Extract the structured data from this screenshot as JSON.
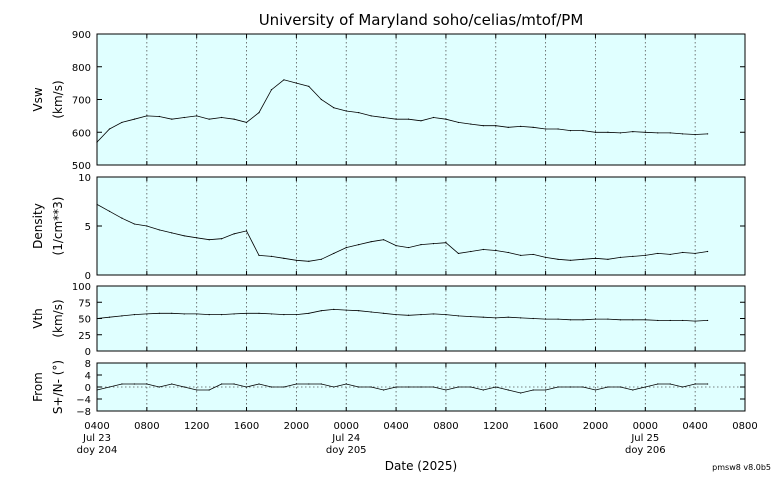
{
  "title": "University of Maryland  soho/celias/mtof/PM",
  "xlabel": "Date (2025)",
  "version": "pmsw8 v8.0b5",
  "colors": {
    "plot_bg": "#e0ffff",
    "trace": "#000000",
    "grid": "#555555"
  },
  "x_ticks": [
    {
      "h": 0,
      "lines": [
        "0400",
        "Jul 23",
        "doy 204"
      ]
    },
    {
      "h": 4,
      "lines": [
        "0800"
      ]
    },
    {
      "h": 8,
      "lines": [
        "1200"
      ]
    },
    {
      "h": 12,
      "lines": [
        "1600"
      ]
    },
    {
      "h": 16,
      "lines": [
        "2000"
      ]
    },
    {
      "h": 20,
      "lines": [
        "0000",
        "Jul 24",
        "doy 205"
      ]
    },
    {
      "h": 24,
      "lines": [
        "0400"
      ]
    },
    {
      "h": 28,
      "lines": [
        "0800"
      ]
    },
    {
      "h": 32,
      "lines": [
        "1200"
      ]
    },
    {
      "h": 36,
      "lines": [
        "1600"
      ]
    },
    {
      "h": 40,
      "lines": [
        "2000"
      ]
    },
    {
      "h": 44,
      "lines": [
        "0000",
        "Jul 25",
        "doy 206"
      ]
    },
    {
      "h": 48,
      "lines": [
        "0400"
      ]
    },
    {
      "h": 52,
      "lines": [
        "0800"
      ]
    }
  ],
  "chart_data": [
    {
      "type": "line",
      "name": "vsw",
      "ylabel": [
        "Vsw",
        "(km/s)"
      ],
      "ylim": [
        500,
        900
      ],
      "yticks": [
        500,
        600,
        700,
        800,
        900
      ],
      "xlim_hours": [
        0,
        52
      ],
      "x": [
        0,
        1,
        2,
        3,
        4,
        5,
        6,
        7,
        8,
        9,
        10,
        11,
        12,
        13,
        14,
        15,
        16,
        17,
        18,
        19,
        20,
        21,
        22,
        23,
        24,
        25,
        26,
        27,
        28,
        29,
        30,
        31,
        32,
        33,
        34,
        35,
        36,
        37,
        38,
        39,
        40,
        41,
        42,
        43,
        44,
        45,
        46,
        47,
        48,
        49
      ],
      "values": [
        570,
        610,
        630,
        640,
        650,
        648,
        640,
        645,
        650,
        640,
        645,
        640,
        630,
        660,
        730,
        760,
        750,
        740,
        700,
        675,
        665,
        660,
        650,
        645,
        640,
        640,
        635,
        645,
        640,
        630,
        625,
        620,
        620,
        615,
        618,
        615,
        610,
        610,
        605,
        605,
        600,
        600,
        598,
        602,
        600,
        598,
        598,
        595,
        593,
        595
      ]
    },
    {
      "type": "line",
      "name": "density",
      "ylabel": [
        "Density",
        "(1/cm**3)"
      ],
      "ylim": [
        0,
        10
      ],
      "yticks": [
        0,
        5,
        10
      ],
      "xlim_hours": [
        0,
        52
      ],
      "x": [
        0,
        1,
        2,
        3,
        4,
        5,
        6,
        7,
        8,
        9,
        10,
        11,
        12,
        13,
        14,
        15,
        16,
        17,
        18,
        19,
        20,
        21,
        22,
        23,
        24,
        25,
        26,
        27,
        28,
        29,
        30,
        31,
        32,
        33,
        34,
        35,
        36,
        37,
        38,
        39,
        40,
        41,
        42,
        43,
        44,
        45,
        46,
        47,
        48,
        49
      ],
      "values": [
        7.2,
        6.5,
        5.8,
        5.2,
        5.0,
        4.6,
        4.3,
        4.0,
        3.8,
        3.6,
        3.7,
        4.2,
        4.5,
        2.0,
        1.9,
        1.7,
        1.5,
        1.4,
        1.6,
        2.2,
        2.8,
        3.1,
        3.4,
        3.6,
        3.0,
        2.8,
        3.1,
        3.2,
        3.3,
        2.2,
        2.4,
        2.6,
        2.5,
        2.3,
        2.0,
        2.1,
        1.8,
        1.6,
        1.5,
        1.6,
        1.7,
        1.6,
        1.8,
        1.9,
        2.0,
        2.2,
        2.1,
        2.3,
        2.2,
        2.4
      ]
    },
    {
      "type": "line",
      "name": "vth",
      "ylabel": [
        "Vth",
        "(km/s)"
      ],
      "ylim": [
        0,
        100
      ],
      "yticks": [
        0,
        25,
        50,
        75,
        100
      ],
      "xlim_hours": [
        0,
        52
      ],
      "x": [
        0,
        1,
        2,
        3,
        4,
        5,
        6,
        7,
        8,
        9,
        10,
        11,
        12,
        13,
        14,
        15,
        16,
        17,
        18,
        19,
        20,
        21,
        22,
        23,
        24,
        25,
        26,
        27,
        28,
        29,
        30,
        31,
        32,
        33,
        34,
        35,
        36,
        37,
        38,
        39,
        40,
        41,
        42,
        43,
        44,
        45,
        46,
        47,
        48,
        49
      ],
      "values": [
        50,
        52,
        54,
        56,
        57,
        58,
        58,
        57,
        57,
        56,
        56,
        57,
        58,
        58,
        57,
        56,
        56,
        58,
        62,
        64,
        63,
        62,
        60,
        58,
        56,
        55,
        56,
        57,
        56,
        54,
        53,
        52,
        51,
        52,
        51,
        50,
        49,
        49,
        48,
        48,
        49,
        49,
        48,
        48,
        48,
        47,
        47,
        47,
        46,
        47
      ]
    },
    {
      "type": "line",
      "name": "flow",
      "ylabel": [
        "From",
        "S+/N- (°)"
      ],
      "ylim": [
        -8,
        8
      ],
      "yticks": [
        -8,
        -4,
        0,
        4,
        8
      ],
      "xlim_hours": [
        0,
        52
      ],
      "x": [
        0,
        1,
        2,
        3,
        4,
        5,
        6,
        7,
        8,
        9,
        10,
        11,
        12,
        13,
        14,
        15,
        16,
        17,
        18,
        19,
        20,
        21,
        22,
        23,
        24,
        25,
        26,
        27,
        28,
        29,
        30,
        31,
        32,
        33,
        34,
        35,
        36,
        37,
        38,
        39,
        40,
        41,
        42,
        43,
        44,
        45,
        46,
        47,
        48,
        49
      ],
      "values": [
        -1,
        0,
        1,
        1,
        1,
        0,
        1,
        0,
        -1,
        -1,
        1,
        1,
        0,
        1,
        0,
        0,
        1,
        1,
        1,
        0,
        1,
        0,
        0,
        -1,
        0,
        0,
        0,
        0,
        -1,
        0,
        0,
        -1,
        0,
        -1,
        -2,
        -1,
        -1,
        0,
        0,
        0,
        -1,
        0,
        0,
        -1,
        0,
        1,
        1,
        0,
        1,
        1
      ]
    }
  ]
}
